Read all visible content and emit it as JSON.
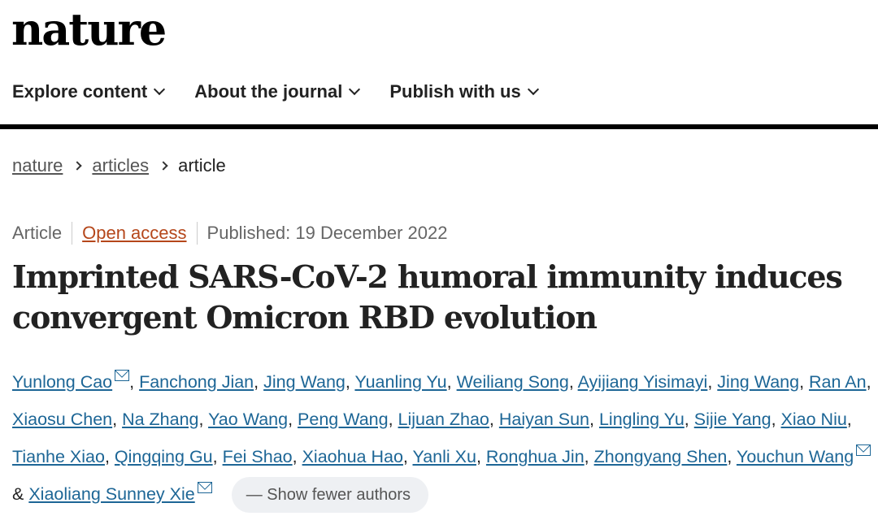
{
  "logo": "nature",
  "nav": [
    {
      "label": "Explore content"
    },
    {
      "label": "About the journal"
    },
    {
      "label": "Publish with us"
    }
  ],
  "breadcrumb": [
    "nature",
    "articles",
    "article"
  ],
  "meta": {
    "type": "Article",
    "access": "Open access",
    "published": "Published: 19 December 2022"
  },
  "title": "Imprinted SARS-CoV-2 humoral immunity induces convergent Omicron RBD evolution",
  "authors": [
    "Yunlong Cao",
    "Fanchong Jian",
    "Jing Wang",
    "Yuanling Yu",
    "Weiliang Song",
    "Ayijiang Yisimayi",
    "Jing Wang",
    "Ran An",
    "Xiaosu Chen",
    "Na Zhang",
    "Yao Wang",
    "Peng Wang",
    "Lijuan Zhao",
    "Haiyan Sun",
    "Lingling Yu",
    "Sijie Yang",
    "Xiao Niu",
    "Tianhe Xiao",
    "Qingqing Gu",
    "Fei Shao",
    "Xiaohua Hao",
    "Yanli Xu",
    "Ronghua Jin",
    "Zhongyang Shen",
    "Youchun Wang",
    "Xiaoliang Sunney Xie"
  ],
  "corresponding": [
    0,
    24,
    25
  ],
  "show_fewer": "— Show fewer authors",
  "colors": {
    "link": "#1d6696",
    "open_access": "#b5471b"
  }
}
